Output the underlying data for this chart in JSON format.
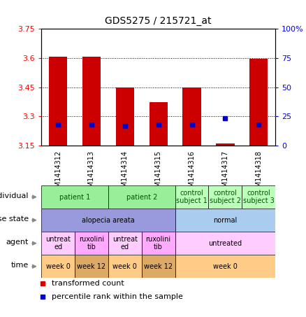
{
  "title": "GDS5275 / 215721_at",
  "samples": [
    "GSM1414312",
    "GSM1414313",
    "GSM1414314",
    "GSM1414315",
    "GSM1414316",
    "GSM1414317",
    "GSM1414318"
  ],
  "bar_heights": [
    3.605,
    3.605,
    3.448,
    3.375,
    3.45,
    3.162,
    3.595
  ],
  "bar_base": 3.15,
  "percentile_values": [
    3.258,
    3.258,
    3.253,
    3.258,
    3.258,
    3.29,
    3.258
  ],
  "ylim": [
    3.15,
    3.75
  ],
  "ylim_right": [
    0,
    100
  ],
  "yticks_left": [
    3.15,
    3.3,
    3.45,
    3.6,
    3.75
  ],
  "yticks_right": [
    0,
    25,
    50,
    75,
    100
  ],
  "ytick_labels_left": [
    "3.15",
    "3.3",
    "3.45",
    "3.6",
    "3.75"
  ],
  "ytick_labels_right": [
    "0",
    "25",
    "50",
    "75",
    "100%"
  ],
  "bar_color": "#cc0000",
  "percentile_color": "#0000cc",
  "annotation_rows": [
    {
      "label": "individual",
      "cells": [
        {
          "text": "patient 1",
          "span": 2,
          "color": "#99ee99",
          "textcolor": "#005500"
        },
        {
          "text": "patient 2",
          "span": 2,
          "color": "#99ee99",
          "textcolor": "#005500"
        },
        {
          "text": "control\nsubject 1",
          "span": 1,
          "color": "#bbffbb",
          "textcolor": "#005500"
        },
        {
          "text": "control\nsubject 2",
          "span": 1,
          "color": "#bbffbb",
          "textcolor": "#005500"
        },
        {
          "text": "control\nsubject 3",
          "span": 1,
          "color": "#bbffbb",
          "textcolor": "#005500"
        }
      ]
    },
    {
      "label": "disease state",
      "cells": [
        {
          "text": "alopecia areata",
          "span": 4,
          "color": "#9999dd",
          "textcolor": "#000000"
        },
        {
          "text": "normal",
          "span": 3,
          "color": "#aaccee",
          "textcolor": "#000000"
        }
      ]
    },
    {
      "label": "agent",
      "cells": [
        {
          "text": "untreat\ned",
          "span": 1,
          "color": "#ffccff",
          "textcolor": "#000000"
        },
        {
          "text": "ruxolini\ntib",
          "span": 1,
          "color": "#ffaaff",
          "textcolor": "#000000"
        },
        {
          "text": "untreat\ned",
          "span": 1,
          "color": "#ffccff",
          "textcolor": "#000000"
        },
        {
          "text": "ruxolini\ntib",
          "span": 1,
          "color": "#ffaaff",
          "textcolor": "#000000"
        },
        {
          "text": "untreated",
          "span": 3,
          "color": "#ffccff",
          "textcolor": "#000000"
        }
      ]
    },
    {
      "label": "time",
      "cells": [
        {
          "text": "week 0",
          "span": 1,
          "color": "#ffcc88",
          "textcolor": "#000000"
        },
        {
          "text": "week 12",
          "span": 1,
          "color": "#ddaa66",
          "textcolor": "#000000"
        },
        {
          "text": "week 0",
          "span": 1,
          "color": "#ffcc88",
          "textcolor": "#000000"
        },
        {
          "text": "week 12",
          "span": 1,
          "color": "#ddaa66",
          "textcolor": "#000000"
        },
        {
          "text": "week 0",
          "span": 3,
          "color": "#ffcc88",
          "textcolor": "#000000"
        }
      ]
    }
  ],
  "legend_items": [
    {
      "label": "transformed count",
      "color": "#cc0000"
    },
    {
      "label": "percentile rank within the sample",
      "color": "#0000cc"
    }
  ]
}
